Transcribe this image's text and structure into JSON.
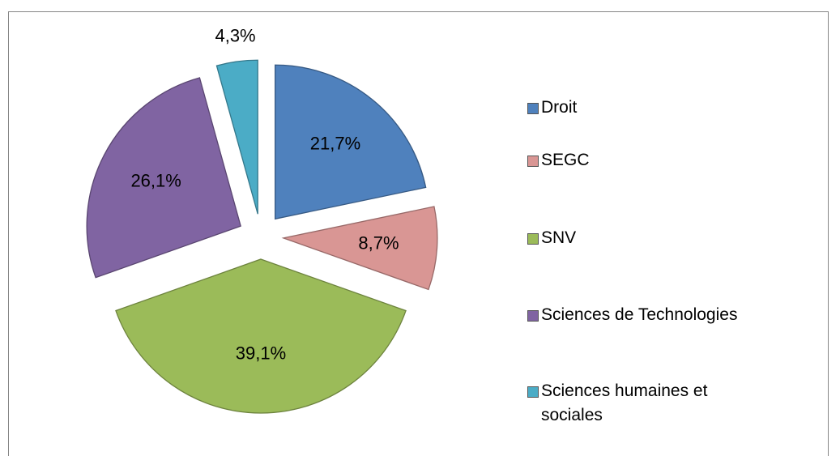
{
  "chart_data": {
    "type": "pie",
    "categories": [
      "Droit",
      "SEGC",
      "SNV",
      "Sciences de Technologies",
      "Sciences humaines et sociales"
    ],
    "values": [
      21.7,
      8.7,
      39.1,
      26.1,
      4.3
    ],
    "value_labels": [
      "21,7%",
      "8,7%",
      "39,1%",
      "26,1%",
      "4,3%"
    ],
    "colors": [
      "#4f81bd",
      "#d99694",
      "#9bbb59",
      "#8064a2",
      "#4bacc6"
    ],
    "legend": "right"
  }
}
